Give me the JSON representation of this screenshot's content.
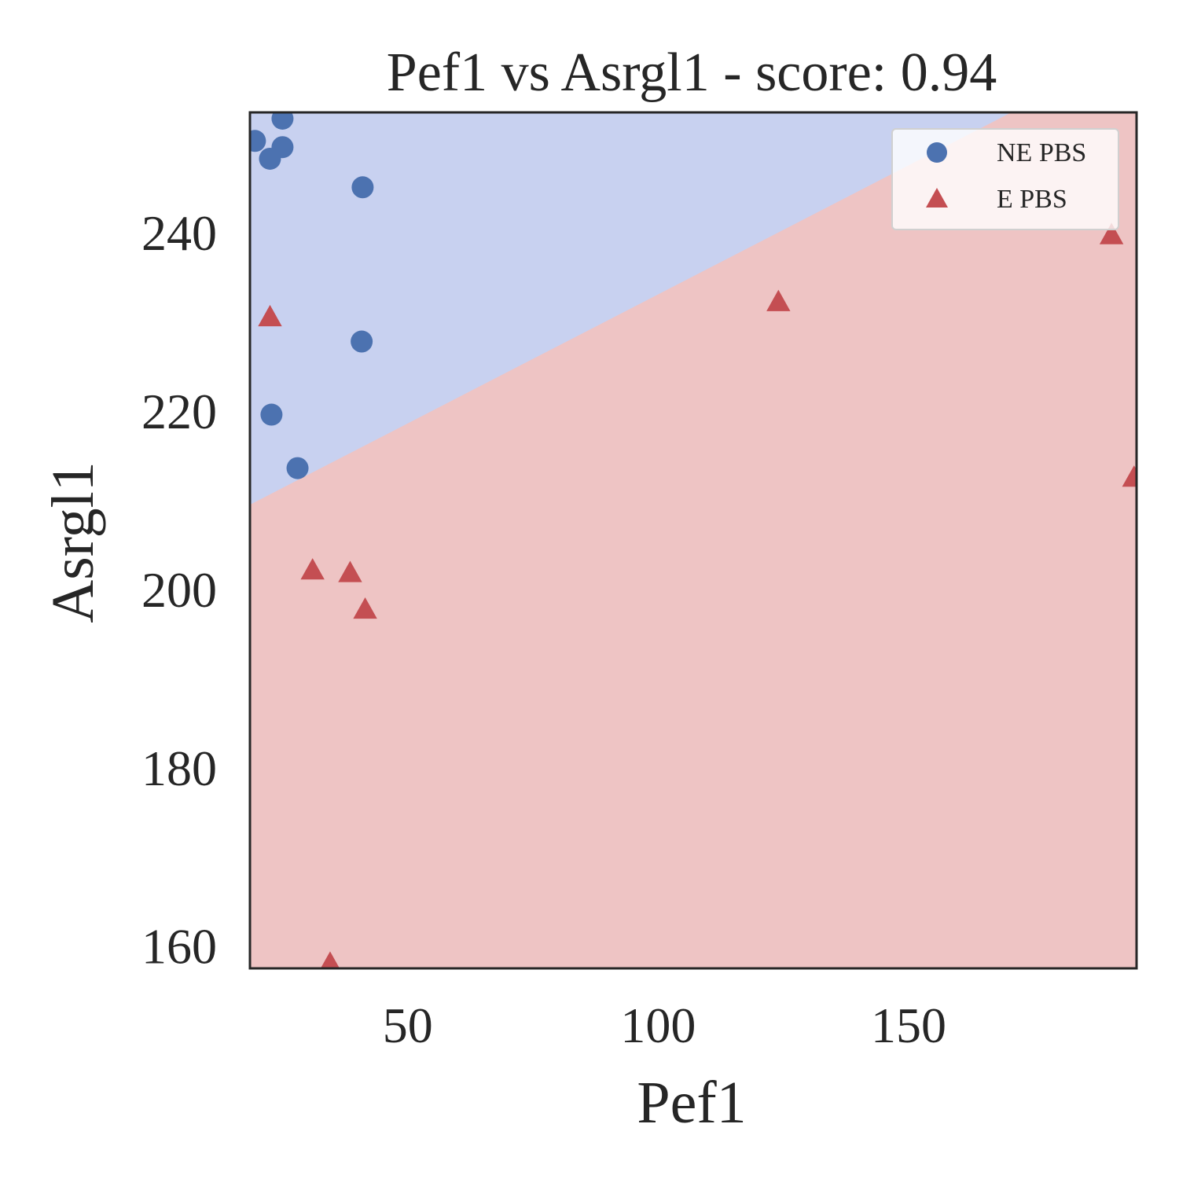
{
  "chart_data": {
    "type": "scatter",
    "title": "Pef1 vs Asrgl1 - score: 0.94",
    "xlabel": "Pef1",
    "ylabel": "Asrgl1",
    "xlim": [
      18.5,
      195.5
    ],
    "ylim": [
      157.5,
      253.5
    ],
    "xticks": [
      50,
      100,
      150
    ],
    "yticks": [
      160,
      180,
      200,
      220,
      240
    ],
    "grid": false,
    "legend_position": "top-right",
    "decision_boundary": {
      "description_points": [
        [
          18.5,
          209.5
        ],
        [
          170.5,
          253.5
        ]
      ],
      "above_class": "NE PBS",
      "below_class": "E PBS",
      "above_color": "#c8d1f0",
      "below_color": "#eec4c4"
    },
    "series": [
      {
        "name": "NE PBS",
        "marker": "circle",
        "color": "#4c72b0",
        "points": [
          [
            19.5,
            250.3
          ],
          [
            22.5,
            248.3
          ],
          [
            25.0,
            252.8
          ],
          [
            25.0,
            249.6
          ],
          [
            41.0,
            245.1
          ],
          [
            40.8,
            227.8
          ],
          [
            22.8,
            219.6
          ],
          [
            28.0,
            213.6
          ]
        ]
      },
      {
        "name": "E PBS",
        "marker": "triangle",
        "color": "#c44e52",
        "points": [
          [
            22.5,
            230.5
          ],
          [
            31.0,
            202.1
          ],
          [
            38.5,
            201.8
          ],
          [
            41.5,
            197.7
          ],
          [
            34.5,
            158.0
          ],
          [
            124.0,
            232.2
          ],
          [
            190.5,
            239.7
          ],
          [
            195.0,
            212.5
          ]
        ]
      }
    ]
  }
}
